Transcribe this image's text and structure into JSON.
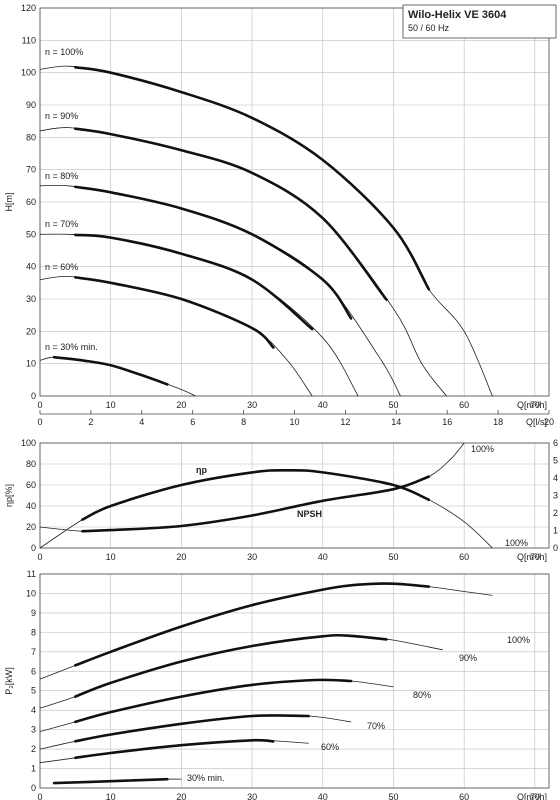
{
  "title_box": {
    "title": "Wilo-Helix VE 3604",
    "subtitle": "50 / 60 Hz"
  },
  "chart_data": [
    {
      "type": "line",
      "id": "head",
      "ylabel": "H[m]",
      "xlabel": "Q[m³/h]",
      "xlabel2": "Q[l/s]",
      "xlim": [
        0,
        72
      ],
      "ylim": [
        0,
        120
      ],
      "xticks": [
        0,
        10,
        20,
        30,
        40,
        50,
        60,
        70
      ],
      "yticks": [
        0,
        10,
        20,
        30,
        40,
        50,
        60,
        70,
        80,
        90,
        100,
        110,
        120
      ],
      "x2ticks": [
        0,
        2,
        4,
        6,
        8,
        10,
        12,
        14,
        16,
        18,
        20
      ],
      "grid": true,
      "series": [
        {
          "name": "n = 100%",
          "x": [
            0,
            4,
            10,
            20,
            30,
            40,
            50,
            55,
            60,
            64
          ],
          "y": [
            101,
            102,
            100,
            94,
            86,
            73,
            52,
            33,
            20,
            0
          ],
          "thick": [
            5,
            55
          ]
        },
        {
          "name": "n = 90%",
          "x": [
            0,
            4,
            10,
            20,
            30,
            40,
            50,
            54,
            57.5
          ],
          "y": [
            82,
            83,
            81,
            76,
            69,
            55,
            27,
            10,
            0
          ],
          "thick": [
            5,
            49
          ]
        },
        {
          "name": "n = 80%",
          "x": [
            0,
            4,
            10,
            20,
            30,
            40,
            48,
            51
          ],
          "y": [
            65,
            65,
            63,
            58,
            50,
            36,
            12,
            0
          ],
          "thick": [
            5,
            44
          ]
        },
        {
          "name": "n = 70%",
          "x": [
            0,
            4,
            10,
            20,
            30,
            40,
            45
          ],
          "y": [
            50,
            50,
            49,
            44,
            36,
            18,
            0
          ],
          "thick": [
            5,
            38.5
          ]
        },
        {
          "name": "n = 60%",
          "x": [
            0,
            4,
            10,
            20,
            30,
            35,
            38.5
          ],
          "y": [
            36,
            37,
            35,
            30,
            21,
            11,
            0
          ],
          "thick": [
            5,
            33
          ]
        },
        {
          "name": "n = 30% min.",
          "x": [
            0,
            2,
            6,
            10,
            15,
            20,
            22
          ],
          "y": [
            11,
            12,
            11,
            9.5,
            6,
            2,
            0
          ],
          "thick": [
            2,
            18
          ]
        }
      ]
    },
    {
      "type": "line",
      "id": "efficiency",
      "ylabel": "ηp[%]",
      "xlabel": "Q[m³/h]",
      "xlim": [
        0,
        72
      ],
      "ylim": [
        0,
        100
      ],
      "y2lim": [
        0,
        6
      ],
      "xticks": [
        0,
        10,
        20,
        30,
        40,
        50,
        60,
        70
      ],
      "yticks": [
        0,
        20,
        40,
        60,
        80,
        100
      ],
      "y2ticks": [
        0,
        1,
        2,
        3,
        4,
        5,
        6
      ],
      "grid": true,
      "series": [
        {
          "name": "ηp",
          "x": [
            0,
            6,
            10,
            20,
            30,
            35,
            40,
            50,
            55,
            60,
            64
          ],
          "y": [
            0,
            27,
            40,
            60,
            72,
            74,
            72,
            60,
            46,
            25,
            0
          ],
          "thick": [
            6,
            55
          ]
        },
        {
          "name": "NPSH",
          "x": [
            0,
            6,
            10,
            20,
            30,
            40,
            50,
            55,
            58,
            60
          ],
          "y": [
            20,
            16,
            17,
            21,
            31,
            45,
            56,
            68,
            84,
            100
          ],
          "thick": [
            6,
            55
          ]
        }
      ],
      "annotations": [
        "100%",
        "100%"
      ]
    },
    {
      "type": "line",
      "id": "power",
      "ylabel": "P₂[kW]",
      "xlabel": "Q[m³/h]",
      "xlim": [
        0,
        72
      ],
      "ylim": [
        0,
        11
      ],
      "xticks": [
        0,
        10,
        20,
        30,
        40,
        50,
        60,
        70
      ],
      "yticks": [
        0,
        1,
        2,
        3,
        4,
        5,
        6,
        7,
        8,
        9,
        10,
        11
      ],
      "grid": true,
      "series": [
        {
          "name": "100%",
          "x": [
            0,
            5,
            10,
            20,
            30,
            40,
            45,
            50,
            55,
            60,
            64
          ],
          "y": [
            5.6,
            6.3,
            7.0,
            8.3,
            9.4,
            10.2,
            10.45,
            10.5,
            10.35,
            10.1,
            9.9
          ],
          "thick": [
            5,
            55
          ]
        },
        {
          "name": "90%",
          "x": [
            0,
            5,
            10,
            20,
            30,
            40,
            44,
            50,
            57
          ],
          "y": [
            4.1,
            4.7,
            5.4,
            6.5,
            7.3,
            7.8,
            7.82,
            7.6,
            7.1
          ],
          "thick": [
            5,
            49
          ]
        },
        {
          "name": "80%",
          "x": [
            0,
            5,
            10,
            20,
            30,
            39,
            44,
            50
          ],
          "y": [
            2.9,
            3.4,
            3.9,
            4.7,
            5.3,
            5.55,
            5.5,
            5.2
          ],
          "thick": [
            5,
            44
          ]
        },
        {
          "name": "70%",
          "x": [
            0,
            5,
            10,
            20,
            30,
            38,
            44
          ],
          "y": [
            2.0,
            2.4,
            2.75,
            3.3,
            3.7,
            3.7,
            3.4
          ],
          "thick": [
            5,
            38
          ]
        },
        {
          "name": "60%",
          "x": [
            0,
            5,
            10,
            20,
            30,
            38
          ],
          "y": [
            1.3,
            1.55,
            1.8,
            2.2,
            2.45,
            2.3
          ],
          "thick": [
            5,
            33
          ]
        },
        {
          "name": "30% min.",
          "x": [
            2,
            10,
            18,
            20
          ],
          "y": [
            0.25,
            0.35,
            0.45,
            0.45
          ],
          "thick": [
            2,
            18
          ]
        }
      ]
    }
  ],
  "labels": {
    "head": [
      "n = 100%",
      "n = 90%",
      "n = 80%",
      "n = 70%",
      "n = 60%",
      "n = 30% min."
    ],
    "eff_eta": "ηp",
    "eff_npsh": "NPSH",
    "eff_right_top": "100%",
    "eff_right_bottom": "100%",
    "power": [
      "100%",
      "90%",
      "80%",
      "70%",
      "60%",
      "30% min."
    ]
  }
}
